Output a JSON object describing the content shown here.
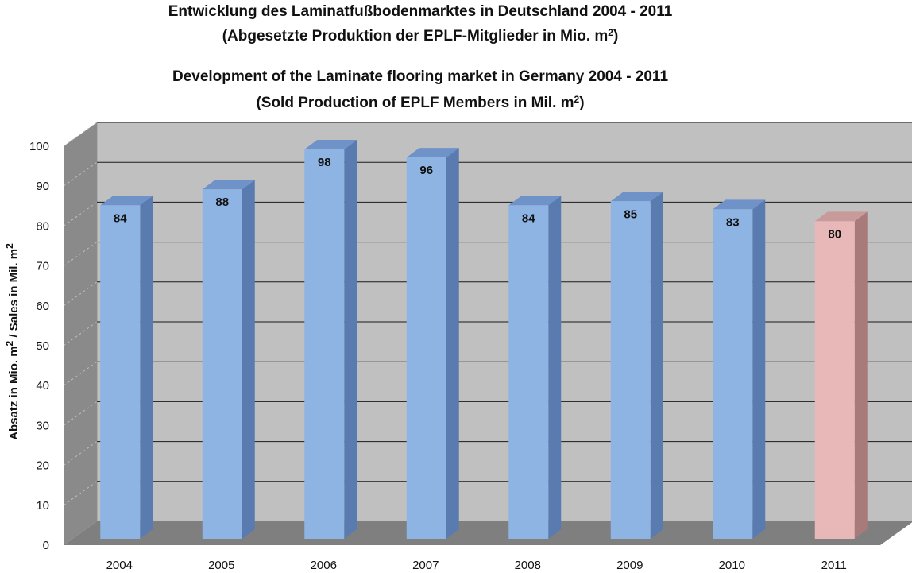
{
  "title": {
    "de_line1": "Entwicklung des Laminatfußbodenmarktes in Deutschland 2004 - 2011",
    "de_line2_text": "(Abgesetzte Produktion der EPLF-Mitglieder in Mio. m",
    "de_line2_sup": "2",
    "de_line2_end": ")",
    "en_line1": "Development of the Laminate flooring market in Germany 2004 - 2011",
    "en_line2_text": "(Sold Production of EPLF Members in Mil. m",
    "en_line2_sup": "2",
    "en_line2_end": ")"
  },
  "ylabel": {
    "part1": "Absatz in Mio. m",
    "sup1": "2",
    "part2": " / Sales in Mil. m",
    "sup2": "2"
  },
  "colors": {
    "wall": "#c0c0c0",
    "side_wall": "#8a8a8a",
    "floor": "#7f7f7f",
    "bar_front": "#8db4e2",
    "bar_side": "#5a7bb0",
    "bar_top": "#6f92c8",
    "highlight_front": "#e8b8b8",
    "highlight_side": "#a87a7a",
    "highlight_top": "#c89a9a"
  },
  "chart_data": {
    "type": "bar",
    "categories": [
      "2004",
      "2005",
      "2006",
      "2007",
      "2008",
      "2009",
      "2010",
      "2011"
    ],
    "values": [
      84,
      88,
      98,
      96,
      84,
      85,
      83,
      80
    ],
    "data_labels": [
      "84",
      "88",
      "98",
      "96",
      "84",
      "85",
      "83",
      "80"
    ],
    "highlight_index": 7,
    "ylim": [
      0,
      100
    ],
    "yticks": [
      "0",
      "10",
      "20",
      "30",
      "40",
      "50",
      "60",
      "70",
      "80",
      "90",
      "100"
    ],
    "grid": true,
    "three_d": true
  }
}
